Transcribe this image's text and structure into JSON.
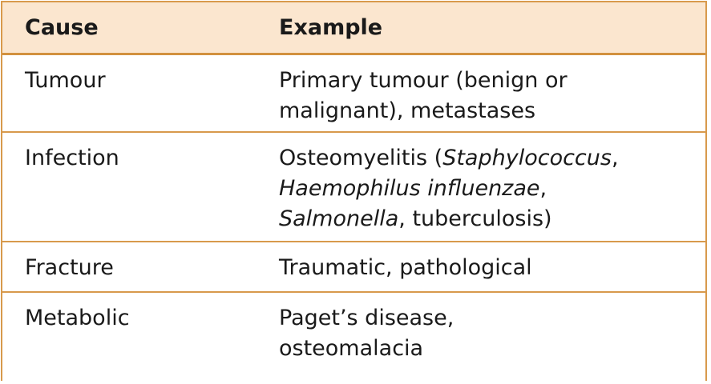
{
  "colors": {
    "header_background": "#fbe6cf",
    "border": "#d89a4c"
  },
  "table": {
    "headers": {
      "cause": "Cause",
      "example": "Example"
    },
    "rows": [
      {
        "cause": "Tumour",
        "example_lines": [
          [
            {
              "text": "Primary tumour (benign or",
              "italic": false
            }
          ],
          [
            {
              "text": "malignant), metastases",
              "italic": false
            }
          ]
        ]
      },
      {
        "cause": "Infection",
        "example_lines": [
          [
            {
              "text": "Osteomyelitis (",
              "italic": false
            },
            {
              "text": "Staphylococcus",
              "italic": true
            },
            {
              "text": ",",
              "italic": false
            }
          ],
          [
            {
              "text": "Haemophilus influenzae",
              "italic": true
            },
            {
              "text": ",",
              "italic": false
            }
          ],
          [
            {
              "text": "Salmonella",
              "italic": true
            },
            {
              "text": ", tuberculosis)",
              "italic": false
            }
          ]
        ]
      },
      {
        "cause": "Fracture",
        "example_lines": [
          [
            {
              "text": "Traumatic, pathological",
              "italic": false
            }
          ]
        ]
      },
      {
        "cause": "Metabolic",
        "example_lines": [
          [
            {
              "text": "Paget’s disease,",
              "italic": false
            }
          ],
          [
            {
              "text": "osteomalacia",
              "italic": false
            }
          ]
        ]
      }
    ]
  }
}
